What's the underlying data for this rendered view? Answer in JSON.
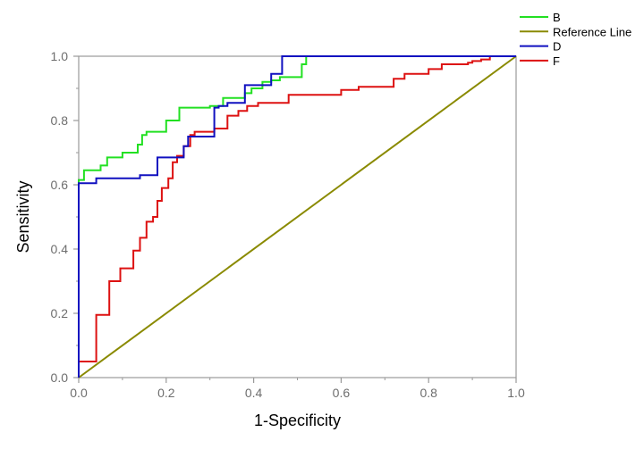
{
  "chart_data": {
    "type": "line",
    "title": "",
    "xlabel": "1-Specificity",
    "ylabel": "Sensitivity",
    "xlim": [
      0,
      1
    ],
    "ylim": [
      0,
      1
    ],
    "x_ticks": [
      "0.0",
      "0.2",
      "0.4",
      "0.6",
      "0.8",
      "1.0"
    ],
    "y_ticks": [
      "0.0",
      "0.2",
      "0.4",
      "0.6",
      "0.8",
      "1.0"
    ],
    "grid": false,
    "legend_position": "top-right",
    "series": [
      {
        "name": "B",
        "color": "#22e022",
        "x": [
          0,
          0,
          0.012,
          0.012,
          0.05,
          0.05,
          0.065,
          0.065,
          0.1,
          0.1,
          0.135,
          0.135,
          0.145,
          0.145,
          0.155,
          0.155,
          0.2,
          0.2,
          0.23,
          0.23,
          0.3,
          0.3,
          0.33,
          0.33,
          0.38,
          0.38,
          0.395,
          0.395,
          0.42,
          0.42,
          0.44,
          0.44,
          0.46,
          0.46,
          0.51,
          0.51,
          0.52,
          0.52,
          1.0
        ],
        "y": [
          0,
          0.615,
          0.615,
          0.645,
          0.645,
          0.66,
          0.66,
          0.685,
          0.685,
          0.7,
          0.7,
          0.725,
          0.725,
          0.755,
          0.755,
          0.765,
          0.765,
          0.8,
          0.8,
          0.84,
          0.84,
          0.845,
          0.845,
          0.87,
          0.87,
          0.885,
          0.885,
          0.9,
          0.9,
          0.92,
          0.92,
          0.925,
          0.925,
          0.935,
          0.935,
          0.975,
          0.975,
          1.0,
          1.0
        ]
      },
      {
        "name": "Reference Line",
        "color": "#8a8a00",
        "x": [
          0,
          1
        ],
        "y": [
          0,
          1
        ]
      },
      {
        "name": "D",
        "color": "#1010c0",
        "x": [
          0,
          0,
          0.04,
          0.04,
          0.14,
          0.14,
          0.18,
          0.18,
          0.24,
          0.24,
          0.25,
          0.25,
          0.31,
          0.31,
          0.32,
          0.32,
          0.34,
          0.34,
          0.38,
          0.38,
          0.44,
          0.44,
          0.465,
          0.465,
          1.0
        ],
        "y": [
          0,
          0.605,
          0.605,
          0.62,
          0.62,
          0.63,
          0.63,
          0.685,
          0.685,
          0.72,
          0.72,
          0.75,
          0.75,
          0.84,
          0.84,
          0.845,
          0.845,
          0.855,
          0.855,
          0.91,
          0.91,
          0.945,
          0.945,
          1.0,
          1.0
        ]
      },
      {
        "name": "F",
        "color": "#dd1111",
        "x": [
          0,
          0,
          0.04,
          0.04,
          0.07,
          0.07,
          0.095,
          0.095,
          0.125,
          0.125,
          0.14,
          0.14,
          0.155,
          0.155,
          0.17,
          0.17,
          0.18,
          0.18,
          0.19,
          0.19,
          0.205,
          0.205,
          0.215,
          0.215,
          0.225,
          0.225,
          0.24,
          0.24,
          0.255,
          0.255,
          0.265,
          0.265,
          0.31,
          0.31,
          0.34,
          0.34,
          0.365,
          0.365,
          0.385,
          0.385,
          0.41,
          0.41,
          0.48,
          0.48,
          0.6,
          0.6,
          0.64,
          0.64,
          0.72,
          0.72,
          0.745,
          0.745,
          0.8,
          0.8,
          0.83,
          0.83,
          0.89,
          0.89,
          0.9,
          0.9,
          0.92,
          0.92,
          0.94,
          0.94,
          1.0
        ],
        "y": [
          0,
          0.05,
          0.05,
          0.195,
          0.195,
          0.3,
          0.3,
          0.34,
          0.34,
          0.395,
          0.395,
          0.435,
          0.435,
          0.485,
          0.485,
          0.5,
          0.5,
          0.55,
          0.55,
          0.59,
          0.59,
          0.62,
          0.62,
          0.67,
          0.67,
          0.69,
          0.69,
          0.72,
          0.72,
          0.755,
          0.755,
          0.765,
          0.765,
          0.775,
          0.775,
          0.815,
          0.815,
          0.83,
          0.83,
          0.845,
          0.845,
          0.855,
          0.855,
          0.88,
          0.88,
          0.895,
          0.895,
          0.905,
          0.905,
          0.93,
          0.93,
          0.945,
          0.945,
          0.96,
          0.96,
          0.975,
          0.975,
          0.98,
          0.98,
          0.985,
          0.985,
          0.99,
          0.99,
          1.0,
          1.0
        ]
      }
    ]
  }
}
